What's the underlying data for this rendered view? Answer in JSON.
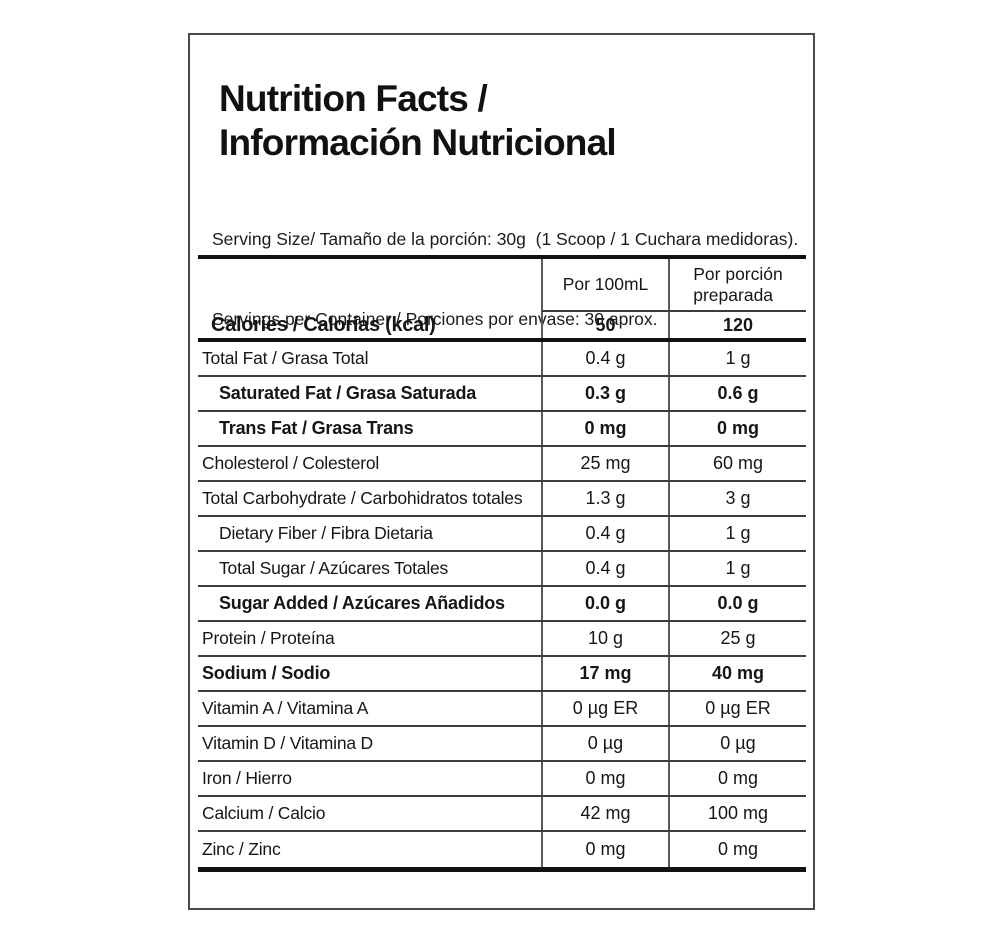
{
  "label": {
    "title_line1": "Nutrition Facts /",
    "title_line2": "Información Nutricional",
    "serving_line1": "Serving Size/ Tamaño de la porción: 30g  (1 Scoop / 1 Cuchara medidoras).",
    "serving_line2": "Servings per Container / Porciones por envase: 30 aprox."
  },
  "table": {
    "header": {
      "col_per_100ml": "Por 100mL",
      "col_per_serving_line1": "Por porción",
      "col_per_serving_line2": "preparada"
    },
    "calories": {
      "label": "Calories / Calorías (kcal)",
      "per_100ml": "50",
      "per_serving": "120"
    },
    "rows": [
      {
        "label": "Total Fat / Grasa Total",
        "per_100ml": "0.4 g",
        "per_serving": "1 g",
        "bold": false,
        "indent": 0
      },
      {
        "label": "Saturated Fat / Grasa Saturada",
        "per_100ml": "0.3 g",
        "per_serving": "0.6 g",
        "bold": true,
        "indent": 1
      },
      {
        "label": "Trans Fat / Grasa Trans",
        "per_100ml": "0 mg",
        "per_serving": "0 mg",
        "bold": true,
        "indent": 1
      },
      {
        "label": "Cholesterol / Colesterol",
        "per_100ml": "25 mg",
        "per_serving": "60 mg",
        "bold": false,
        "indent": 0
      },
      {
        "label": "Total Carbohydrate / Carbohidratos totales",
        "per_100ml": "1.3 g",
        "per_serving": "3 g",
        "bold": false,
        "indent": 0
      },
      {
        "label": "Dietary Fiber / Fibra Dietaria",
        "per_100ml": "0.4 g",
        "per_serving": "1 g",
        "bold": false,
        "indent": 1
      },
      {
        "label": "Total Sugar / Azúcares Totales",
        "per_100ml": "0.4 g",
        "per_serving": "1 g",
        "bold": false,
        "indent": 1
      },
      {
        "label": "Sugar Added / Azúcares Añadidos",
        "per_100ml": "0.0 g",
        "per_serving": "0.0 g",
        "bold": true,
        "indent": 1
      },
      {
        "label": "Protein / Proteína",
        "per_100ml": "10 g",
        "per_serving": "25 g",
        "bold": false,
        "indent": 0
      },
      {
        "label": "Sodium / Sodio",
        "per_100ml": "17 mg",
        "per_serving": "40 mg",
        "bold": true,
        "indent": 0
      },
      {
        "label": "Vitamin A / Vitamina A",
        "per_100ml": "0 µg ER",
        "per_serving": "0 µg ER",
        "bold": false,
        "indent": 0
      },
      {
        "label": "Vitamin D / Vitamina D",
        "per_100ml": "0 µg",
        "per_serving": "0 µg",
        "bold": false,
        "indent": 0
      },
      {
        "label": "Iron / Hierro",
        "per_100ml": "0 mg",
        "per_serving": "0 mg",
        "bold": false,
        "indent": 0
      },
      {
        "label": "Calcium / Calcio",
        "per_100ml": "42 mg",
        "per_serving": "100 mg",
        "bold": false,
        "indent": 0
      },
      {
        "label": "Zinc / Zinc",
        "per_100ml": "0 mg",
        "per_serving": "0 mg",
        "bold": false,
        "indent": 0
      }
    ]
  },
  "colors": {
    "text": "#161616",
    "thin_line": "#3d3d3d",
    "thick_line": "#121212",
    "outer_border": "#4a4a4a",
    "background": "#ffffff"
  }
}
